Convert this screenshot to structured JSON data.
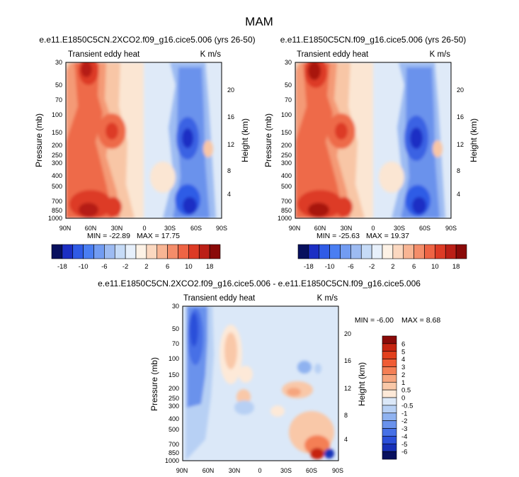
{
  "season_title": "MAM",
  "chart_data": [
    {
      "type": "contour",
      "id": "panel_2xco2",
      "title": "e.e11.E1850C5CN.2XCO2.f09_g16.cice5.006 (yrs 26-50)",
      "left_label": "Transient eddy heat",
      "right_label": "K m/s",
      "xlabel": "",
      "ylabel": "Pressure (mb)",
      "y2label": "Height (km)",
      "x_ticks": [
        "90N",
        "60N",
        "30N",
        "0",
        "30S",
        "60S",
        "90S"
      ],
      "y_ticks": [
        "30",
        "50",
        "70",
        "100",
        "150",
        "200",
        "250",
        "300",
        "400",
        "500",
        "700",
        "850",
        "1000"
      ],
      "y_range_mb": [
        1000,
        30
      ],
      "height_ticks_km": [
        "4",
        "8",
        "12",
        "16",
        "20"
      ],
      "min": -22.89,
      "max": 17.75,
      "min_label": "MIN = -22.89",
      "max_label": "MAX = 17.75"
    },
    {
      "type": "contour",
      "id": "panel_control",
      "title": "e.e11.E1850C5CN.f09_g16.cice5.006 (yrs 26-50)",
      "left_label": "Transient eddy heat",
      "right_label": "K m/s",
      "xlabel": "",
      "ylabel": "Pressure (mb)",
      "y2label": "Height (km)",
      "x_ticks": [
        "90N",
        "60N",
        "30N",
        "0",
        "30S",
        "60S",
        "90S"
      ],
      "y_ticks": [
        "30",
        "50",
        "70",
        "100",
        "150",
        "200",
        "250",
        "300",
        "400",
        "500",
        "700",
        "850",
        "1000"
      ],
      "y_range_mb": [
        1000,
        30
      ],
      "height_ticks_km": [
        "4",
        "8",
        "12",
        "16",
        "20"
      ],
      "min": -25.63,
      "max": 19.37,
      "min_label": "MIN = -25.63",
      "max_label": "MAX = 19.37"
    },
    {
      "type": "contour",
      "id": "panel_diff",
      "title": "e.e11.E1850C5CN.2XCO2.f09_g16.cice5.006 - e.e11.E1850C5CN.f09_g16.cice5.006",
      "left_label": "Transient eddy heat",
      "right_label": "K m/s",
      "xlabel": "",
      "ylabel": "Pressure (mb)",
      "y2label": "Height (km)",
      "x_ticks": [
        "90N",
        "60N",
        "30N",
        "0",
        "30S",
        "60S",
        "90S"
      ],
      "y_ticks": [
        "30",
        "50",
        "70",
        "100",
        "150",
        "200",
        "250",
        "300",
        "400",
        "500",
        "700",
        "850",
        "1000"
      ],
      "y_range_mb": [
        1000,
        30
      ],
      "height_ticks_km": [
        "4",
        "8",
        "12",
        "16",
        "20"
      ],
      "min": -6.0,
      "max": 8.68,
      "min_label": "MIN = -6.00",
      "max_label": "MAX =  8.68"
    }
  ],
  "colorbar_main": {
    "tick_labels": [
      "-18",
      "-10",
      "-6",
      "-2",
      "2",
      "6",
      "10",
      "18"
    ],
    "colors": [
      "#08105e",
      "#1c2fc4",
      "#2f5be6",
      "#4a7ef2",
      "#729cf2",
      "#9dbbf2",
      "#c6dbf7",
      "#e7f0fb",
      "#fdf2e6",
      "#fbd8c0",
      "#f8b594",
      "#f48d6a",
      "#ee6444",
      "#dd3b25",
      "#bb1f16",
      "#8a0a08"
    ]
  },
  "colorbar_diff": {
    "tick_labels": [
      "6",
      "5",
      "4",
      "3",
      "2",
      "1",
      "0.5",
      "0",
      "-0.5",
      "-1",
      "-2",
      "-3",
      "-4",
      "-5",
      "-6"
    ],
    "colors": [
      "#8a0a08",
      "#c62410",
      "#e2401d",
      "#f05c35",
      "#f47f55",
      "#f6a57e",
      "#f9c8a8",
      "#fde9d8",
      "#dbe8f8",
      "#b7d0f4",
      "#8fb2f0",
      "#6a92ec",
      "#4670e6",
      "#2b4fd9",
      "#1730b7",
      "#08105e"
    ]
  },
  "colors": {
    "neg_dark": "#08105e",
    "neg_mid": "#2f5be6",
    "neg_light": "#c6dbf7",
    "pos_light": "#fbd8c0",
    "pos_mid": "#f48d6a",
    "pos_dark": "#8a0a08",
    "background_pale": "#dfeaf8"
  }
}
